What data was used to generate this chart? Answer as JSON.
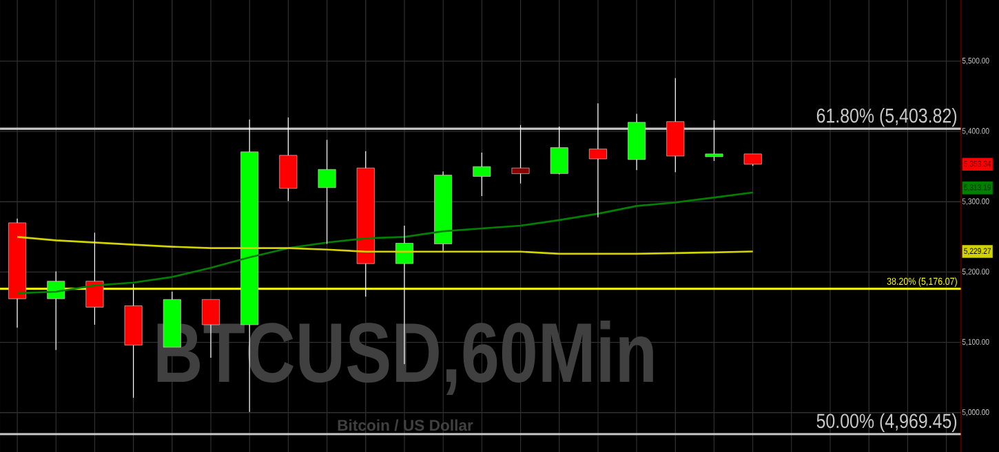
{
  "chart_data": {
    "type": "candlestick",
    "title": "BTCUSD,60Min",
    "subtitle": "Bitcoin / US Dollar",
    "categories": [
      null,
      null,
      null,
      null,
      null,
      null,
      null,
      null,
      null,
      null,
      null,
      null,
      null,
      null,
      null,
      null,
      null,
      null,
      null,
      null
    ],
    "ohlc": [
      [
        5270,
        5276,
        5121,
        5162
      ],
      [
        5162,
        5201,
        5089,
        5187
      ],
      [
        5187,
        5256,
        5125,
        5150
      ],
      [
        5152,
        5183,
        5021,
        5096
      ],
      [
        5093,
        5172,
        5093,
        5161
      ],
      [
        5161,
        5161,
        5078,
        5125
      ],
      [
        5125,
        5417,
        5001,
        5371
      ],
      [
        5366,
        5420,
        5301,
        5319
      ],
      [
        5320,
        5388,
        5240,
        5346
      ],
      [
        5348,
        5372,
        5165,
        5212
      ],
      [
        5212,
        5266,
        5069,
        5241
      ],
      [
        5240,
        5343,
        5230,
        5338
      ],
      [
        5336,
        5370,
        5308,
        5350
      ],
      [
        5348,
        5409,
        5326,
        5340
      ],
      [
        5340,
        5407,
        5339,
        5377
      ],
      [
        5375,
        5440,
        5278,
        5361
      ],
      [
        5360,
        5425,
        5345,
        5413
      ],
      [
        5414,
        5476,
        5342,
        5365
      ],
      [
        5364,
        5416,
        5358,
        5368
      ],
      [
        5368,
        5368,
        5351,
        5353.34
      ]
    ],
    "colors": [
      "#ff0000",
      "#00ff00",
      "#ff0000",
      "#ff0000",
      "#00ff00",
      "#ff0000",
      "#00ff00",
      "#ff0000",
      "#00ff00",
      "#ff0000",
      "#00ff00",
      "#00ff00",
      "#00ff00",
      "#8b0000",
      "#00ff00",
      "#ff0000",
      "#00ff00",
      "#ff0000",
      "#00ff00",
      "#ff0000"
    ],
    "series": [
      {
        "type": "line",
        "color": "#008000",
        "values": [
          5170,
          5172,
          5181,
          5185,
          5193,
          5206,
          5221,
          5234,
          5242,
          5248,
          5250,
          5258,
          5262,
          5266,
          5274,
          5283,
          5294,
          5299,
          5306,
          5313.19
        ]
      },
      {
        "type": "line",
        "color": "#d2d200",
        "values": [
          5250,
          5245,
          5242,
          5239,
          5236,
          5234,
          5234,
          5234,
          5232,
          5229,
          5229,
          5229,
          5229,
          5229,
          5226,
          5226,
          5226,
          5227,
          5228,
          5229.27
        ]
      }
    ],
    "ref_lines": [
      {
        "axis": "y",
        "value": 5403.82,
        "label": "61.80% (5,403.82)",
        "color": "#c8c8c8"
      },
      {
        "axis": "y",
        "value": 5176.07,
        "label": "38.20% (5,176.07)",
        "color": "#ffff00"
      },
      {
        "axis": "y",
        "value": 4969.45,
        "label": "50.00% (4,969.45)",
        "color": "#c8c8c8"
      }
    ],
    "annotations": [
      "5,353.34",
      "5,313.19",
      "5,229.27"
    ],
    "ylim": [
      4944,
      5587
    ],
    "yticks": [
      {
        "value": 5000,
        "label": "5,000.00"
      },
      {
        "value": 5100,
        "label": "5,100.00"
      },
      {
        "value": 5200,
        "label": "5,200.00"
      },
      {
        "value": 5300,
        "label": "5,300.00"
      },
      {
        "value": 5400,
        "label": "5,400.00"
      },
      {
        "value": 5500,
        "label": "5,500.00"
      }
    ],
    "grid": true
  }
}
